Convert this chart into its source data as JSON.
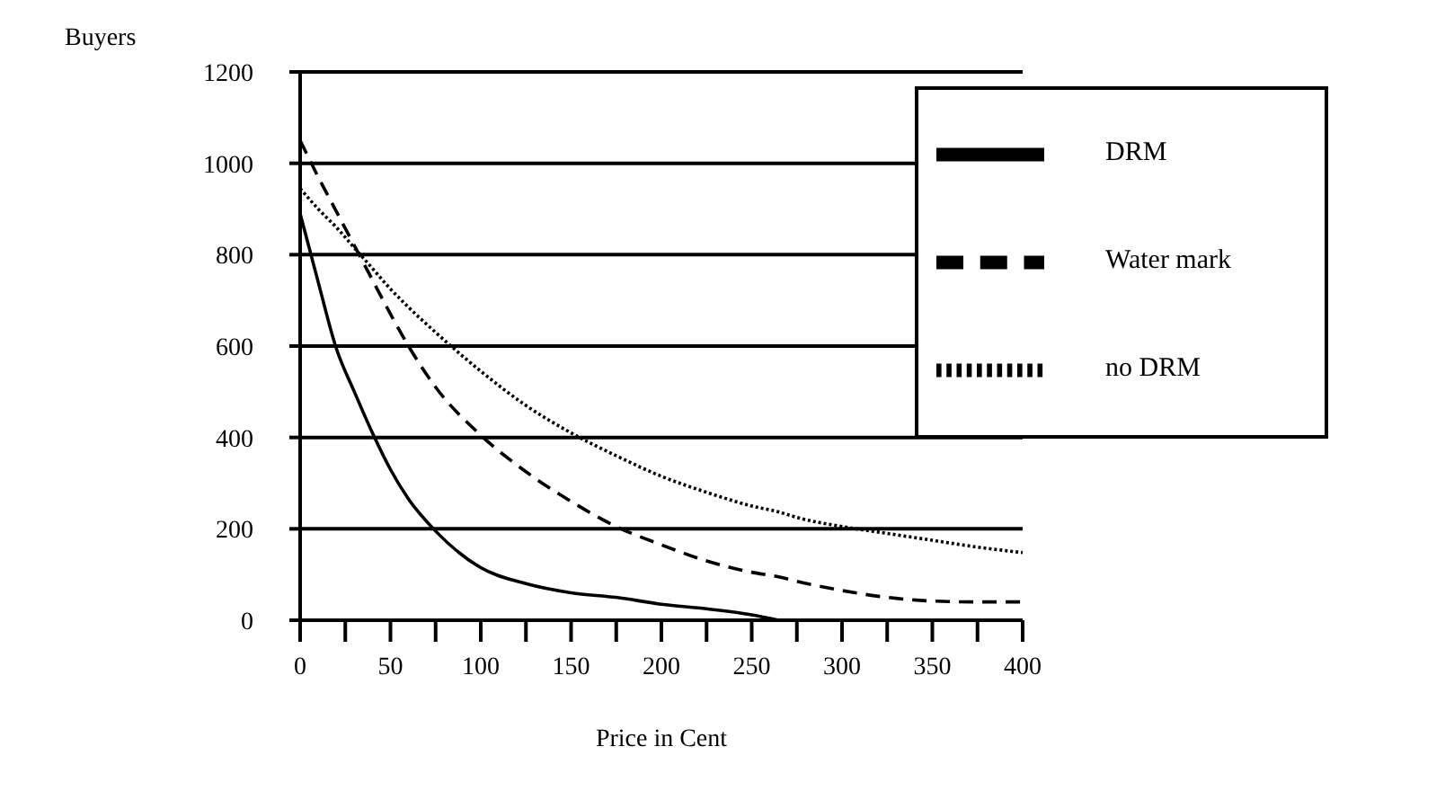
{
  "chart_data": {
    "type": "line",
    "xlabel": "Price in Cent",
    "ylabel": "Buyers",
    "x": [
      0,
      10,
      20,
      30,
      40,
      50,
      60,
      75,
      100,
      125,
      150,
      175,
      200,
      225,
      250,
      265,
      275,
      300,
      325,
      350,
      375,
      400
    ],
    "series": [
      {
        "name": "DRM",
        "color": "#000000",
        "line_style": "solid",
        "values": [
          890,
          740,
          595,
          500,
          410,
          330,
          265,
          195,
          115,
          80,
          60,
          50,
          35,
          25,
          12,
          0,
          null,
          null,
          null,
          null,
          null,
          null
        ]
      },
      {
        "name": "Water mark",
        "color": "#000000",
        "line_style": "dashed",
        "values": [
          1050,
          970,
          895,
          820,
          745,
          670,
          600,
          510,
          405,
          325,
          260,
          205,
          165,
          130,
          105,
          95,
          85,
          65,
          50,
          42,
          40,
          40
        ]
      },
      {
        "name": "no DRM",
        "color": "#000000",
        "line_style": "dotted",
        "values": [
          945,
          900,
          860,
          815,
          770,
          725,
          685,
          630,
          545,
          470,
          410,
          360,
          315,
          280,
          250,
          237,
          225,
          205,
          190,
          175,
          160,
          148
        ]
      }
    ],
    "xlim": [
      0,
      400
    ],
    "ylim": [
      0,
      1200
    ],
    "xticks": [
      0,
      {
        "value": 25,
        "label": null
      },
      50,
      {
        "value": 75,
        "label": null
      },
      100,
      {
        "value": 125,
        "label": null
      },
      150,
      {
        "value": 175,
        "label": null
      },
      200,
      {
        "value": 225,
        "label": null
      },
      250,
      {
        "value": 275,
        "label": null
      },
      300,
      {
        "value": 325,
        "label": null
      },
      350,
      {
        "value": 375,
        "label": null
      },
      400
    ],
    "yticks": [
      0,
      200,
      400,
      600,
      800,
      1000,
      1200
    ],
    "grid": "y",
    "legend": "top right",
    "marker": "none"
  }
}
